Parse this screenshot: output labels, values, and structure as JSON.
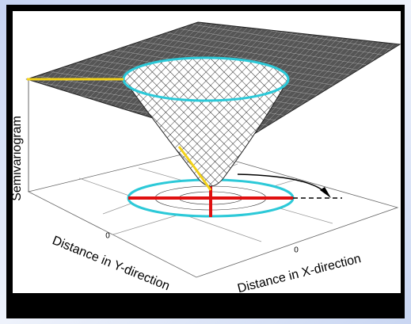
{
  "figure": {
    "z_axis_label": "Semivariogram",
    "y_axis_label": "Distance in Y-direction",
    "x_axis_label": "Distance in X-direction",
    "y_tick": "0",
    "x_tick": "0"
  }
}
